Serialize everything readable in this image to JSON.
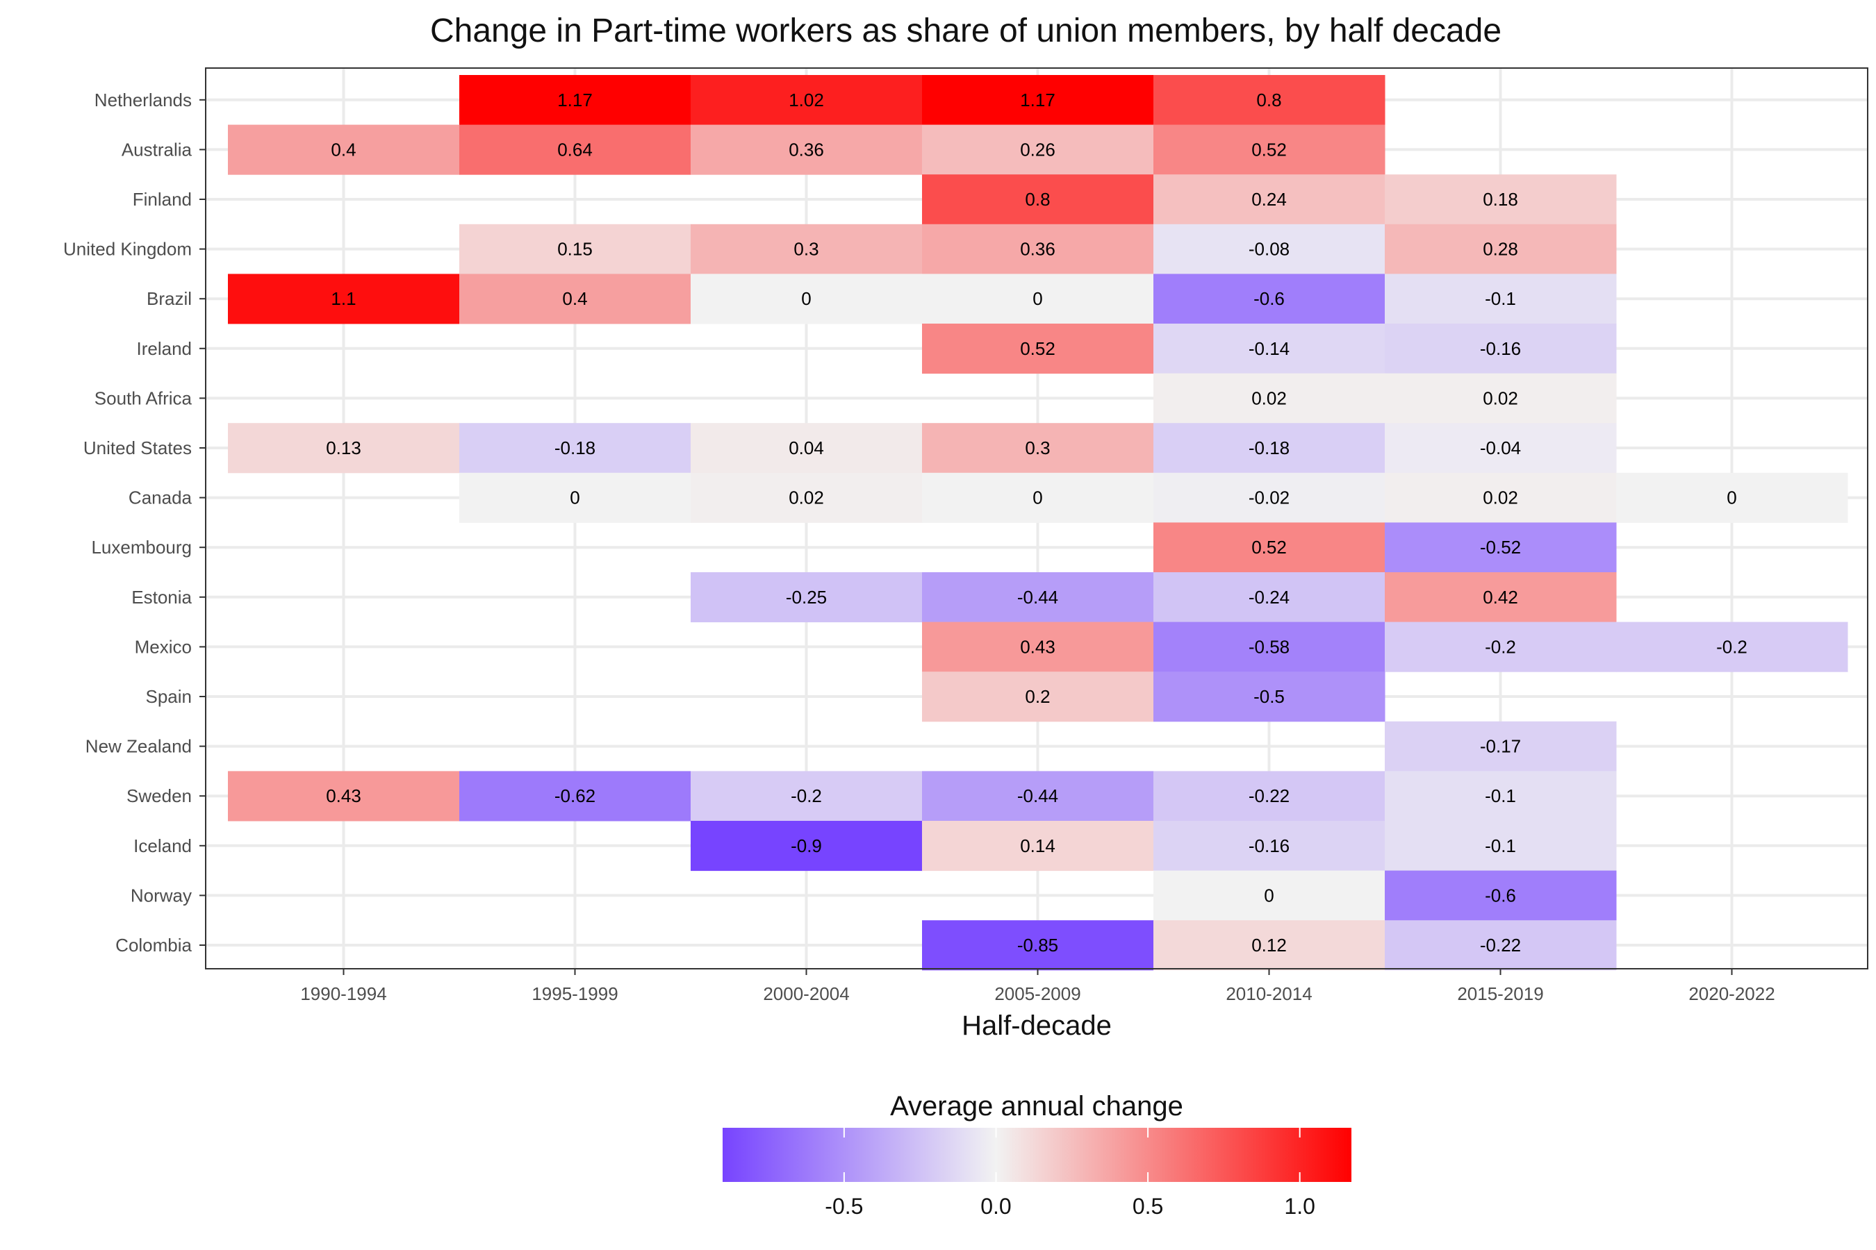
{
  "chart_data": {
    "type": "heatmap",
    "title": "Change in Part-time workers as share of union members, by half decade",
    "xlabel": "Half-decade",
    "ylabel": "",
    "x_categories": [
      "1990-1994",
      "1995-1999",
      "2000-2004",
      "2005-2009",
      "2010-2014",
      "2015-2019",
      "2020-2022"
    ],
    "y_categories": [
      "Netherlands",
      "Australia",
      "Finland",
      "United Kingdom",
      "Brazil",
      "Ireland",
      "South Africa",
      "United States",
      "Canada",
      "Luxembourg",
      "Estonia",
      "Mexico",
      "Spain",
      "New Zealand",
      "Sweden",
      "Iceland",
      "Norway",
      "Colombia"
    ],
    "values": [
      [
        null,
        1.17,
        1.02,
        1.17,
        0.8,
        null,
        null
      ],
      [
        0.4,
        0.64,
        0.36,
        0.26,
        0.52,
        null,
        null
      ],
      [
        null,
        null,
        null,
        0.8,
        0.24,
        0.18,
        null
      ],
      [
        null,
        0.15,
        0.3,
        0.36,
        -0.08,
        0.28,
        null
      ],
      [
        1.1,
        0.4,
        0,
        0,
        -0.6,
        -0.1,
        null
      ],
      [
        null,
        null,
        null,
        0.52,
        -0.14,
        -0.16,
        null
      ],
      [
        null,
        null,
        null,
        null,
        0.02,
        0.02,
        null
      ],
      [
        0.13,
        -0.18,
        0.04,
        0.3,
        -0.18,
        -0.04,
        null
      ],
      [
        null,
        0,
        0.02,
        0,
        -0.02,
        0.02,
        0
      ],
      [
        null,
        null,
        null,
        null,
        0.52,
        -0.52,
        null
      ],
      [
        null,
        null,
        -0.25,
        -0.44,
        -0.24,
        0.42,
        null
      ],
      [
        null,
        null,
        null,
        0.43,
        -0.58,
        -0.2,
        -0.2
      ],
      [
        null,
        null,
        null,
        0.2,
        -0.5,
        null,
        null
      ],
      [
        null,
        null,
        null,
        null,
        null,
        -0.17,
        null
      ],
      [
        0.43,
        -0.62,
        -0.2,
        -0.44,
        -0.22,
        -0.1,
        null
      ],
      [
        null,
        null,
        -0.9,
        0.14,
        -0.16,
        -0.1,
        null
      ],
      [
        null,
        null,
        null,
        null,
        0,
        -0.6,
        null
      ],
      [
        null,
        null,
        null,
        -0.85,
        0.12,
        -0.22,
        null
      ]
    ],
    "legend": {
      "title": "Average annual change",
      "position": "bottom",
      "range": [
        -0.9,
        1.17
      ],
      "ticks": [
        "-0.5",
        "0.0",
        "0.5",
        "1.0"
      ],
      "tick_values": [
        -0.5,
        0,
        0.5,
        1.0
      ]
    },
    "colors": {
      "low": "#7744ff",
      "mid": "#f2f2f2",
      "high": "#ff0000",
      "grid": "#ebebeb",
      "panel_border": "#333333"
    },
    "grid": true
  }
}
